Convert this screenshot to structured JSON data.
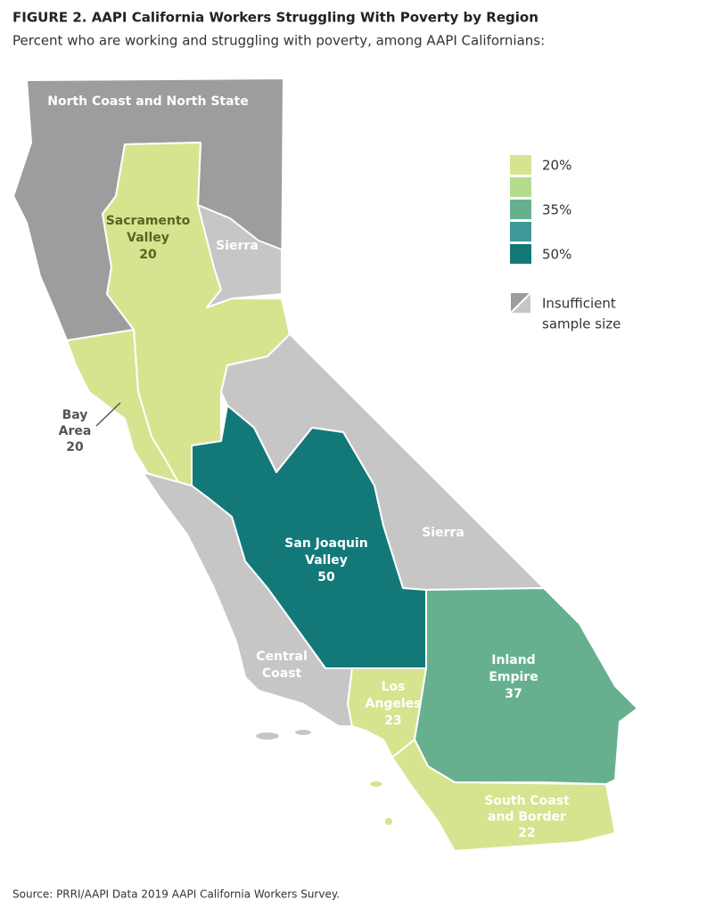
{
  "header": {
    "title": "FIGURE 2. AAPI California Workers Struggling With Poverty by Region",
    "subtitle": "Percent who are working and struggling with poverty, among AAPI Californians:"
  },
  "regions": [
    {
      "name_lines": [
        "North Coast and North State"
      ],
      "color": "#9d9d9d"
    },
    {
      "name_lines": [
        "Sacramento",
        "Valley"
      ],
      "value": 20,
      "color": "#d6e48f"
    },
    {
      "name_lines": [
        "Sierra"
      ],
      "color": "#c6c6c6"
    },
    {
      "name_lines": [
        "Bay",
        "Area"
      ],
      "value": 20,
      "color": "#d6e48f"
    },
    {
      "name_lines": [
        "San Joaquin",
        "Valley"
      ],
      "value": 50,
      "color": "#137878"
    },
    {
      "name_lines": [
        "Sierra"
      ],
      "color": "#c6c6c6"
    },
    {
      "name_lines": [
        "Central",
        "Coast"
      ],
      "color": "#c6c6c6"
    },
    {
      "name_lines": [
        "Los",
        "Angeles"
      ],
      "value": 23,
      "color": "#d6e48f"
    },
    {
      "name_lines": [
        "Inland",
        "Empire"
      ],
      "value": 37,
      "color": "#67b08f"
    },
    {
      "name_lines": [
        "South Coast",
        "and Border"
      ],
      "value": 22,
      "color": "#d6e48f"
    }
  ],
  "legend": {
    "items": [
      {
        "color": "#d6e48f",
        "label": "20%"
      },
      {
        "color": "#b5dc8e"
      },
      {
        "color": "#67b08f",
        "label": "35%"
      },
      {
        "color": "#3d9a98",
        "label": null
      },
      {
        "color": "#137878",
        "label": "50%"
      }
    ],
    "insufficient": {
      "colors": [
        "#9d9d9d",
        "#c6c6c6"
      ],
      "label_lines": [
        "Insufficient",
        "sample size"
      ]
    }
  },
  "source": "Source: PRRI/AAPI Data 2019 AAPI California Workers Survey."
}
